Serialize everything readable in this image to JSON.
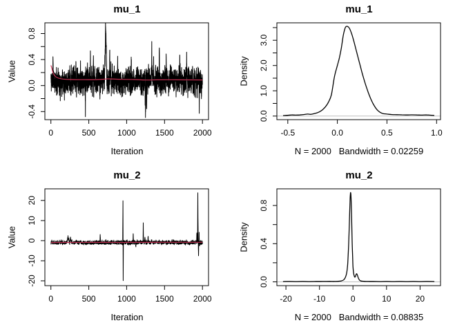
{
  "figure": {
    "background": "#FFFFFF",
    "rows": 2,
    "cols": 2,
    "description": "MCMC diagnostics: trace plots with running-mean line (left column) and kernel density estimates (right column) for parameters mu_1 and mu_2"
  },
  "colors": {
    "trace": "#000000",
    "mean_line": "#C22E50",
    "density": "#000000",
    "axis": "#000000",
    "text": "#000000",
    "zero_line": "#BEBEBE"
  },
  "chart_data": [
    {
      "id": "trace-mu1",
      "type": "line",
      "subtype": "mcmc-trace",
      "title": "mu_1",
      "xlabel": "Iteration",
      "ylabel": "Value",
      "grid": false,
      "legend": null,
      "xlim": [
        -79,
        2080
      ],
      "ylim": [
        -0.525,
        0.965
      ],
      "xticks": {
        "values": [
          0,
          500,
          1000,
          1500,
          2000
        ],
        "labels": [
          "0",
          "500",
          "1000",
          "1500",
          "2000"
        ]
      },
      "yticks": {
        "values": [
          -0.4,
          -0.2,
          0,
          0.2,
          0.4,
          0.6,
          0.8
        ],
        "labels": [
          "-0.4",
          "",
          "0.0",
          "",
          "0.4",
          "",
          "0.8"
        ]
      },
      "zero_line": false,
      "series": [
        {
          "name": "trace-line",
          "color": "#000000",
          "width": 1,
          "generator": {
            "kind": "noisy-trace",
            "n": 2000,
            "seed": 11,
            "baseline": 0.07,
            "sd": 0.105,
            "ar": 0.3,
            "spikes": [
              [
                28,
                0.46,
                2
              ],
              [
                150,
                0.36,
                2
              ],
              [
                330,
                0.4,
                2
              ],
              [
                455,
                -0.45,
                2
              ],
              [
                520,
                0.5,
                3
              ],
              [
                560,
                0.42,
                2
              ],
              [
                722,
                0.91,
                16
              ],
              [
                775,
                0.42,
                2
              ],
              [
                880,
                0.46,
                3
              ],
              [
                1060,
                0.4,
                2
              ],
              [
                1246,
                -0.47,
                5
              ],
              [
                1262,
                -0.34,
                3
              ],
              [
                1330,
                0.5,
                4
              ],
              [
                1355,
                0.46,
                3
              ],
              [
                1430,
                0.46,
                2
              ],
              [
                1520,
                0.4,
                2
              ],
              [
                1700,
                0.46,
                3
              ],
              [
                1790,
                0.41,
                2
              ],
              [
                1868,
                0.42,
                2
              ],
              [
                1958,
                -0.27,
                3
              ]
            ]
          }
        },
        {
          "name": "running-mean-line",
          "color": "#C22E50",
          "width": 1.2,
          "smooth": true,
          "points": [
            [
              1,
              0.31
            ],
            [
              12,
              0.27
            ],
            [
              30,
              0.19
            ],
            [
              60,
              0.14
            ],
            [
              100,
              0.115
            ],
            [
              160,
              0.1
            ],
            [
              250,
              0.093
            ],
            [
              400,
              0.09
            ],
            [
              600,
              0.091
            ],
            [
              720,
              0.1
            ],
            [
              760,
              0.103
            ],
            [
              900,
              0.097
            ],
            [
              1100,
              0.092
            ],
            [
              1250,
              0.085
            ],
            [
              1400,
              0.088
            ],
            [
              1600,
              0.089
            ],
            [
              1800,
              0.087
            ],
            [
              2000,
              0.086
            ]
          ]
        }
      ]
    },
    {
      "id": "density-mu1",
      "type": "line",
      "subtype": "kernel-density",
      "title": "mu_1",
      "xlabel": "N = 2000   Bandwidth = 0.02259",
      "ylabel": "Density",
      "grid": false,
      "legend": null,
      "n": 2000,
      "bandwidth": 0.02259,
      "xlim": [
        -0.61,
        1.04
      ],
      "ylim": [
        -0.142,
        3.69
      ],
      "xticks": {
        "values": [
          -0.5,
          0,
          0.5,
          1.0
        ],
        "labels": [
          "-0.5",
          "0.0",
          "0.5",
          "1.0"
        ]
      },
      "yticks": {
        "values": [
          0,
          0.5,
          1,
          1.5,
          2,
          2.5,
          3,
          3.5
        ],
        "labels": [
          "0.0",
          "",
          "1.0",
          "",
          "2.0",
          "",
          "3.0",
          ""
        ]
      },
      "zero_line": true,
      "series": [
        {
          "name": "density-curve",
          "color": "#000000",
          "width": 1.3,
          "smooth": true,
          "points": [
            [
              -0.547,
              0.02
            ],
            [
              -0.5,
              0.03
            ],
            [
              -0.46,
              0.045
            ],
            [
              -0.42,
              0.04
            ],
            [
              -0.38,
              0.045
            ],
            [
              -0.34,
              0.06
            ],
            [
              -0.3,
              0.08
            ],
            [
              -0.27,
              0.07
            ],
            [
              -0.24,
              0.09
            ],
            [
              -0.21,
              0.12
            ],
            [
              -0.18,
              0.17
            ],
            [
              -0.15,
              0.25
            ],
            [
              -0.12,
              0.37
            ],
            [
              -0.09,
              0.55
            ],
            [
              -0.06,
              0.85
            ],
            [
              -0.03,
              1.55
            ],
            [
              0.0,
              2.0
            ],
            [
              0.02,
              2.3
            ],
            [
              0.04,
              2.7
            ],
            [
              0.06,
              3.2
            ],
            [
              0.08,
              3.5
            ],
            [
              0.1,
              3.55
            ],
            [
              0.12,
              3.48
            ],
            [
              0.14,
              3.3
            ],
            [
              0.16,
              3.05
            ],
            [
              0.19,
              2.6
            ],
            [
              0.22,
              2.15
            ],
            [
              0.25,
              1.7
            ],
            [
              0.28,
              1.3
            ],
            [
              0.31,
              0.95
            ],
            [
              0.34,
              0.65
            ],
            [
              0.37,
              0.42
            ],
            [
              0.4,
              0.25
            ],
            [
              0.43,
              0.15
            ],
            [
              0.46,
              0.1
            ],
            [
              0.5,
              0.08
            ],
            [
              0.55,
              0.06
            ],
            [
              0.6,
              0.055
            ],
            [
              0.65,
              0.05
            ],
            [
              0.7,
              0.045
            ],
            [
              0.75,
              0.05
            ],
            [
              0.8,
              0.045
            ],
            [
              0.85,
              0.04
            ],
            [
              0.9,
              0.045
            ],
            [
              0.94,
              0.035
            ],
            [
              0.977,
              0.025
            ]
          ]
        }
      ]
    },
    {
      "id": "trace-mu2",
      "type": "line",
      "subtype": "mcmc-trace",
      "title": "mu_2",
      "xlabel": "Iteration",
      "ylabel": "Value",
      "grid": false,
      "legend": null,
      "xlim": [
        -79,
        2080
      ],
      "ylim": [
        -22.4,
        25.8
      ],
      "xticks": {
        "values": [
          0,
          500,
          1000,
          1500,
          2000
        ],
        "labels": [
          "0",
          "500",
          "1000",
          "1500",
          "2000"
        ]
      },
      "yticks": {
        "values": [
          -20,
          -10,
          0,
          10,
          20
        ],
        "labels": [
          "-20",
          "-10",
          "0",
          "10",
          "20"
        ]
      },
      "zero_line": false,
      "series": [
        {
          "name": "trace-line",
          "color": "#000000",
          "width": 1,
          "generator": {
            "kind": "noisy-trace",
            "n": 2000,
            "seed": 23,
            "baseline": -0.9,
            "sd": 0.5,
            "ar": 0.35,
            "spikes": [
              [
                225,
                1.5,
                15
              ],
              [
                258,
                1.9,
                8
              ],
              [
                650,
                3.3,
                3
              ],
              [
                950,
                21,
                2
              ],
              [
                953,
                -20.6,
                2
              ],
              [
                1085,
                2.8,
                3
              ],
              [
                1120,
                -2.8,
                2
              ],
              [
                1218,
                9,
                2
              ],
              [
                1240,
                1.8,
                5
              ],
              [
                1282,
                2.3,
                4
              ],
              [
                1925,
                3.5,
                3
              ],
              [
                1938,
                24,
                3
              ],
              [
                1947,
                -7.5,
                3
              ],
              [
                1955,
                3.8,
                2
              ],
              [
                1962,
                -2.5,
                2
              ]
            ]
          }
        },
        {
          "name": "running-mean-line",
          "color": "#C22E50",
          "width": 1.2,
          "smooth": true,
          "points": [
            [
              1,
              -0.92
            ],
            [
              150,
              -0.88
            ],
            [
              300,
              -0.87
            ],
            [
              500,
              -0.86
            ],
            [
              700,
              -0.85
            ],
            [
              950,
              -0.9
            ],
            [
              1000,
              -0.86
            ],
            [
              1200,
              -0.85
            ],
            [
              1500,
              -0.83
            ],
            [
              1750,
              -0.82
            ],
            [
              2000,
              -0.81
            ]
          ]
        }
      ]
    },
    {
      "id": "density-mu2",
      "type": "line",
      "subtype": "kernel-density",
      "title": "mu_2",
      "xlabel": "N = 2000   Bandwidth = 0.08835",
      "ylabel": "Density",
      "grid": false,
      "legend": null,
      "n": 2000,
      "bandwidth": 0.08835,
      "xlim": [
        -22.7,
        26.1
      ],
      "ylim": [
        -0.04,
        0.975
      ],
      "xticks": {
        "values": [
          -20,
          -10,
          0,
          10,
          20
        ],
        "labels": [
          "-20",
          "-10",
          "0",
          "10",
          "20"
        ]
      },
      "yticks": {
        "values": [
          0,
          0.2,
          0.4,
          0.6,
          0.8
        ],
        "labels": [
          "0.0",
          "",
          "0.4",
          "",
          "0.8"
        ]
      },
      "zero_line": true,
      "series": [
        {
          "name": "density-curve",
          "color": "#000000",
          "width": 1.3,
          "smooth": true,
          "points": [
            [
              -20.87,
              0.003
            ],
            [
              -19,
              0.004
            ],
            [
              -17,
              0.003
            ],
            [
              -15,
              0.004
            ],
            [
              -13,
              0.003
            ],
            [
              -11,
              0.004
            ],
            [
              -9,
              0.004
            ],
            [
              -7,
              0.005
            ],
            [
              -5.5,
              0.004
            ],
            [
              -4.5,
              0.006
            ],
            [
              -3.5,
              0.01
            ],
            [
              -2.8,
              0.02
            ],
            [
              -2.3,
              0.045
            ],
            [
              -1.9,
              0.09
            ],
            [
              -1.6,
              0.18
            ],
            [
              -1.35,
              0.35
            ],
            [
              -1.15,
              0.55
            ],
            [
              -1.0,
              0.72
            ],
            [
              -0.88,
              0.85
            ],
            [
              -0.78,
              0.92
            ],
            [
              -0.7,
              0.935
            ],
            [
              -0.6,
              0.9
            ],
            [
              -0.5,
              0.8
            ],
            [
              -0.38,
              0.62
            ],
            [
              -0.25,
              0.42
            ],
            [
              -0.12,
              0.27
            ],
            [
              0.0,
              0.16
            ],
            [
              0.15,
              0.1
            ],
            [
              0.3,
              0.07
            ],
            [
              0.5,
              0.05
            ],
            [
              0.7,
              0.055
            ],
            [
              0.9,
              0.075
            ],
            [
              1.1,
              0.085
            ],
            [
              1.3,
              0.07
            ],
            [
              1.6,
              0.04
            ],
            [
              1.9,
              0.02
            ],
            [
              2.3,
              0.01
            ],
            [
              2.8,
              0.007
            ],
            [
              3.5,
              0.005
            ],
            [
              4.5,
              0.004
            ],
            [
              6,
              0.004
            ],
            [
              8,
              0.003
            ],
            [
              10,
              0.004
            ],
            [
              12,
              0.003
            ],
            [
              14,
              0.004
            ],
            [
              16,
              0.003
            ],
            [
              18,
              0.004
            ],
            [
              20,
              0.003
            ],
            [
              22,
              0.004
            ],
            [
              24.27,
              0.003
            ]
          ]
        }
      ]
    }
  ]
}
